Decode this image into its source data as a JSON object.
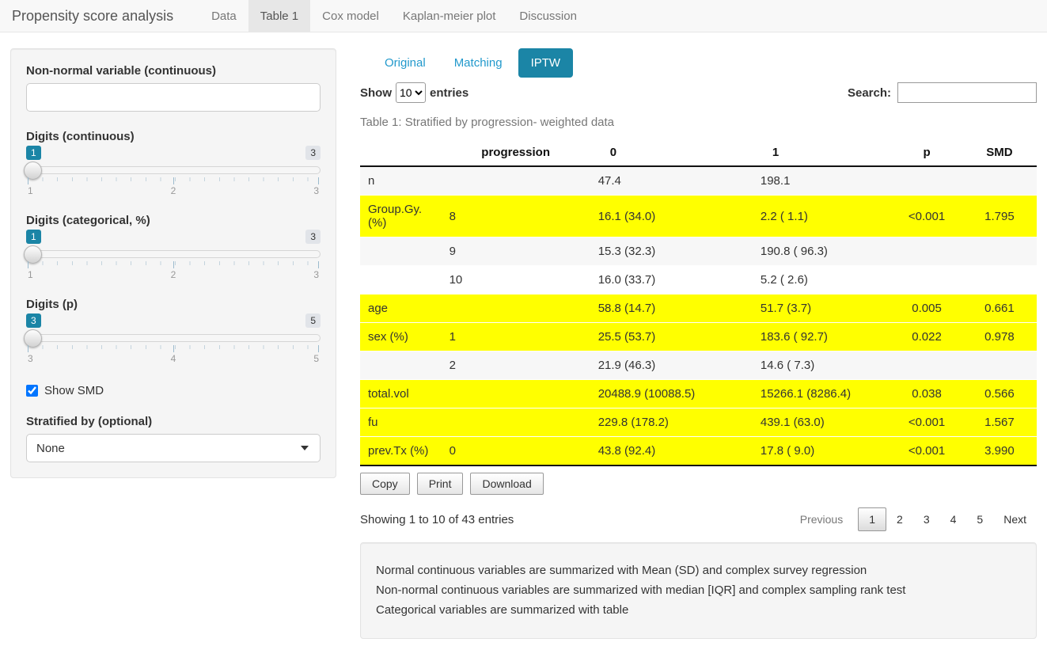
{
  "colors": {
    "accent": "#1b85a6",
    "link": "#2299cc",
    "highlight_row": "#ffff00",
    "stripe_row": "#f7f7f7",
    "navbar_bg": "#f8f8f8",
    "navbar_active_bg": "#e7e7e7",
    "well_bg": "#f5f5f5"
  },
  "navbar": {
    "brand": "Propensity score analysis",
    "tabs": [
      {
        "label": "Data",
        "active": false
      },
      {
        "label": "Table 1",
        "active": true
      },
      {
        "label": "Cox model",
        "active": false
      },
      {
        "label": "Kaplan-meier plot",
        "active": false
      },
      {
        "label": "Discussion",
        "active": false
      }
    ]
  },
  "sidebar": {
    "nonnormal_label": "Non-normal variable (continuous)",
    "nonnormal_value": "",
    "sliders": [
      {
        "label": "Digits (continuous)",
        "value": "1",
        "max_badge": "3",
        "ticks": [
          "1",
          "2",
          "3"
        ]
      },
      {
        "label": "Digits (categorical, %)",
        "value": "1",
        "max_badge": "3",
        "ticks": [
          "1",
          "2",
          "3"
        ]
      },
      {
        "label": "Digits (p)",
        "value": "3",
        "max_badge": "5",
        "ticks": [
          "3",
          "4",
          "5"
        ]
      }
    ],
    "show_smd_label": "Show SMD",
    "show_smd_checked": true,
    "stratified_label": "Stratified by (optional)",
    "stratified_value": "None"
  },
  "main": {
    "pills": [
      {
        "label": "Original",
        "active": false
      },
      {
        "label": "Matching",
        "active": false
      },
      {
        "label": "IPTW",
        "active": true
      }
    ],
    "show_label": "Show",
    "page_length": "10",
    "entries_label": "entries",
    "search_label": "Search:",
    "search_value": "",
    "caption": "Table 1: Stratified by progression- weighted data",
    "table": {
      "headers": [
        "",
        "progression",
        "0",
        "1",
        "p",
        "SMD"
      ],
      "rows": [
        {
          "highlight": "stripe",
          "cells": [
            "n",
            "",
            "47.4",
            "198.1",
            "",
            ""
          ]
        },
        {
          "highlight": "yellow",
          "cells": [
            "Group.Gy. (%)",
            "8",
            "16.1 (34.0)",
            "2.2 ( 1.1)",
            "<0.001",
            "1.795"
          ]
        },
        {
          "highlight": "stripe",
          "cells": [
            "",
            "9",
            "15.3 (32.3)",
            "190.8 ( 96.3)",
            "",
            ""
          ]
        },
        {
          "highlight": "plain",
          "cells": [
            "",
            "10",
            "16.0 (33.7)",
            "5.2 ( 2.6)",
            "",
            ""
          ]
        },
        {
          "highlight": "yellow",
          "cells": [
            "age",
            "",
            "58.8 (14.7)",
            "51.7 (3.7)",
            "0.005",
            "0.661"
          ]
        },
        {
          "highlight": "yellow",
          "cells": [
            "sex (%)",
            "1",
            "25.5 (53.7)",
            "183.6 ( 92.7)",
            "0.022",
            "0.978"
          ]
        },
        {
          "highlight": "stripe",
          "cells": [
            "",
            "2",
            "21.9 (46.3)",
            "14.6 ( 7.3)",
            "",
            ""
          ]
        },
        {
          "highlight": "yellow",
          "cells": [
            "total.vol",
            "",
            "20488.9 (10088.5)",
            "15266.1 (8286.4)",
            "0.038",
            "0.566"
          ]
        },
        {
          "highlight": "yellow",
          "cells": [
            "fu",
            "",
            "229.8 (178.2)",
            "439.1 (63.0)",
            "<0.001",
            "1.567"
          ]
        },
        {
          "highlight": "yellow",
          "cells": [
            "prev.Tx (%)",
            "0",
            "43.8 (92.4)",
            "17.8 ( 9.0)",
            "<0.001",
            "3.990"
          ]
        }
      ]
    },
    "buttons": [
      "Copy",
      "Print",
      "Download"
    ],
    "info": "Showing 1 to 10 of 43 entries",
    "pagination": {
      "previous": "Previous",
      "pages": [
        "1",
        "2",
        "3",
        "4",
        "5"
      ],
      "current": "1",
      "next": "Next"
    },
    "notes": [
      "Normal continuous variables are summarized with Mean (SD) and complex survey regression",
      "Non-normal continuous variables are summarized with median [IQR] and complex sampling rank test",
      "Categorical variables are summarized with table"
    ]
  }
}
